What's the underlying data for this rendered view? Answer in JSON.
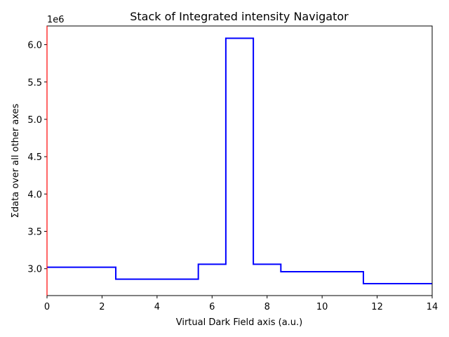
{
  "chart_data": {
    "type": "line",
    "drawstyle": "steps-mid",
    "title": "Stack of Integrated intensity Navigator",
    "xlabel": "Virtual Dark Field axis (a.u.)",
    "ylabel": "Σdata over all other axes",
    "y_offset_label": "1e6",
    "xlim": [
      0,
      14
    ],
    "ylim": [
      2.64,
      6.25
    ],
    "x_ticks": [
      0,
      2,
      4,
      6,
      8,
      10,
      12,
      14
    ],
    "x_tick_labels": [
      "0",
      "2",
      "4",
      "6",
      "8",
      "10",
      "12",
      "14"
    ],
    "y_ticks": [
      3.0,
      3.5,
      4.0,
      4.5,
      5.0,
      5.5,
      6.0
    ],
    "y_tick_labels": [
      "3.0",
      "3.5",
      "4.0",
      "4.5",
      "5.0",
      "5.5",
      "6.0"
    ],
    "grid": false,
    "legend": null,
    "series": [
      {
        "name": "Integrated intensity",
        "color": "#0000ff",
        "x": [
          0,
          1,
          2,
          3,
          4,
          5,
          6,
          7,
          8,
          9,
          10,
          11,
          12,
          13,
          14
        ],
        "values": [
          3.02,
          3.02,
          3.02,
          2.86,
          2.86,
          2.86,
          3.06,
          6.085,
          3.06,
          2.96,
          2.96,
          2.96,
          2.8,
          2.8,
          2.8
        ]
      }
    ],
    "left_spine_color": "#ff0000"
  }
}
